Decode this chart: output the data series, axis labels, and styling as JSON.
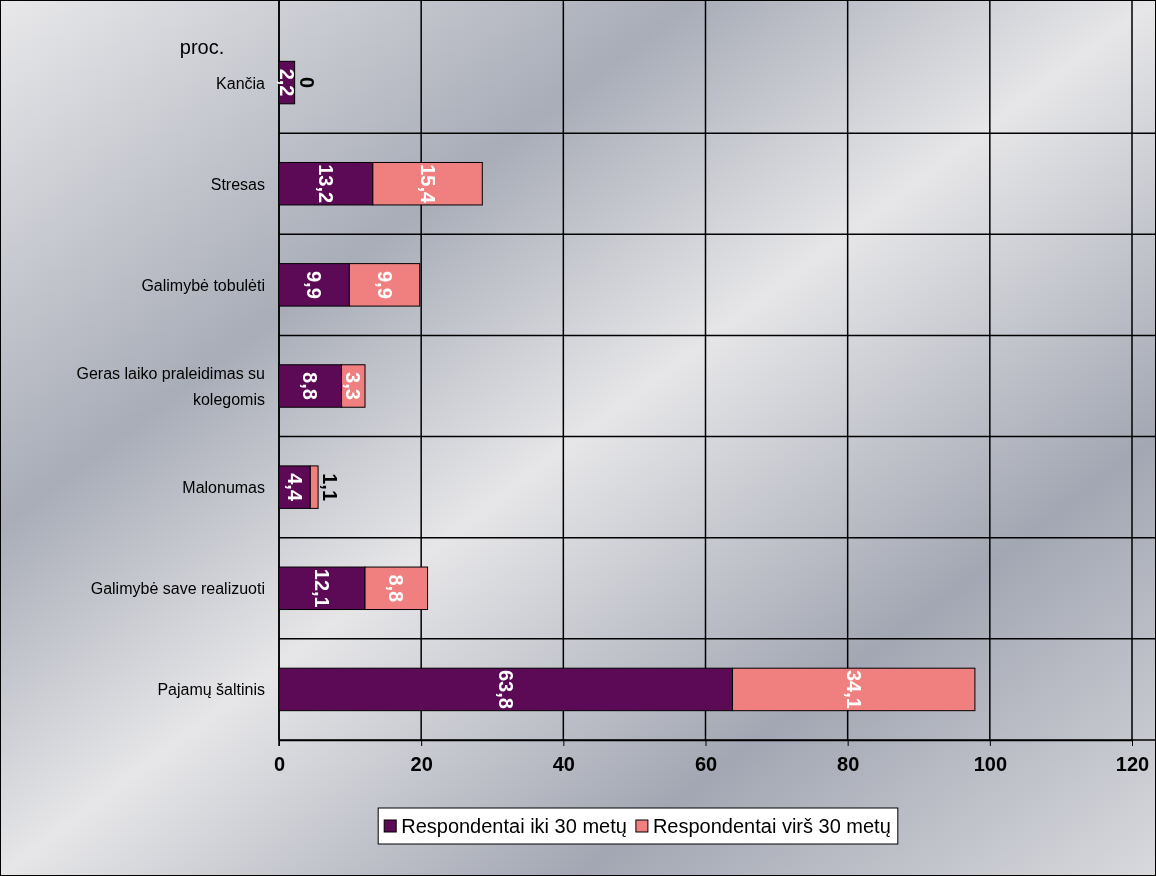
{
  "chart_data": {
    "type": "bar",
    "orientation": "horizontal",
    "stacked": true,
    "xlabel": "proc.",
    "categories": [
      "Kančia",
      "Stresas",
      "Galimybė tobulėti",
      "Geras laiko praleidimas su kolegomis",
      "Malonumas",
      "Galimybė save realizuoti",
      "Pajamų šaltinis"
    ],
    "series": [
      {
        "name": "Respondentai iki 30 metų",
        "color": "#5c0a56",
        "values": [
          2.2,
          13.2,
          9.9,
          8.8,
          4.4,
          12.1,
          63.8
        ],
        "value_labels": [
          "2,2",
          "13,2",
          "9,9",
          "8,8",
          "4,4",
          "12,1",
          "63,8"
        ]
      },
      {
        "name": "Respondentai virš 30 metų",
        "color": "#f08080",
        "values": [
          0,
          15.4,
          9.9,
          3.3,
          1.1,
          8.8,
          34.1
        ],
        "value_labels": [
          "0",
          "15,4",
          "9,9",
          "3,3",
          "1,1",
          "8,8",
          "34,1"
        ]
      }
    ],
    "xlim": [
      0,
      120
    ],
    "xticks": [
      0,
      20,
      40,
      60,
      80,
      100,
      120
    ],
    "grid": true,
    "legend": "bottom"
  }
}
